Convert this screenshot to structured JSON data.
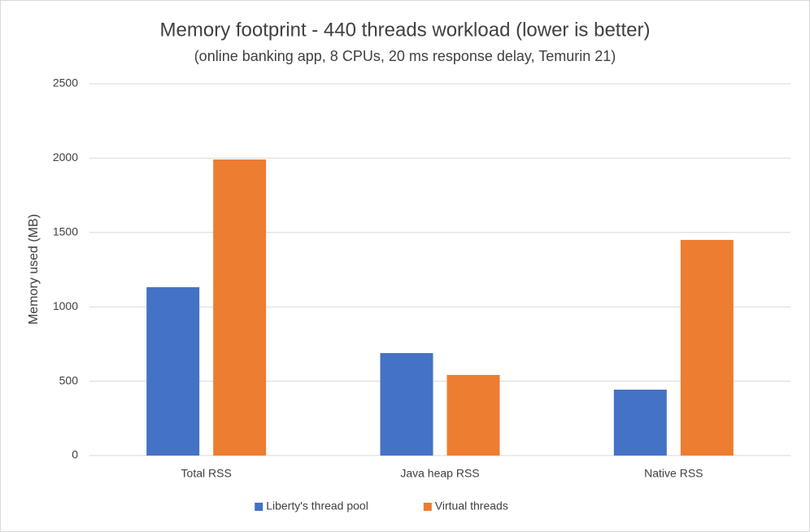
{
  "chart_data": {
    "type": "bar",
    "title": "Memory footprint - 440 threads workload (lower is better)",
    "subtitle": "(online banking app, 8 CPUs, 20 ms response delay, Temurin 21)",
    "y_label": "Memory used (MB)",
    "categories": [
      "Total RSS",
      "Java heap RSS",
      "Native RSS"
    ],
    "series": [
      {
        "name": "Liberty's thread pool",
        "color": "#4472c4",
        "values": [
          1132,
          689,
          443
        ]
      },
      {
        "name": "Virtual threads",
        "color": "#ed7d31",
        "values": [
          1991,
          542,
          1450
        ]
      }
    ],
    "ylim": [
      0,
      2500
    ],
    "yticks": [
      0,
      500,
      1000,
      1500,
      2000,
      2500
    ],
    "grid": true,
    "legend": "bottom"
  }
}
